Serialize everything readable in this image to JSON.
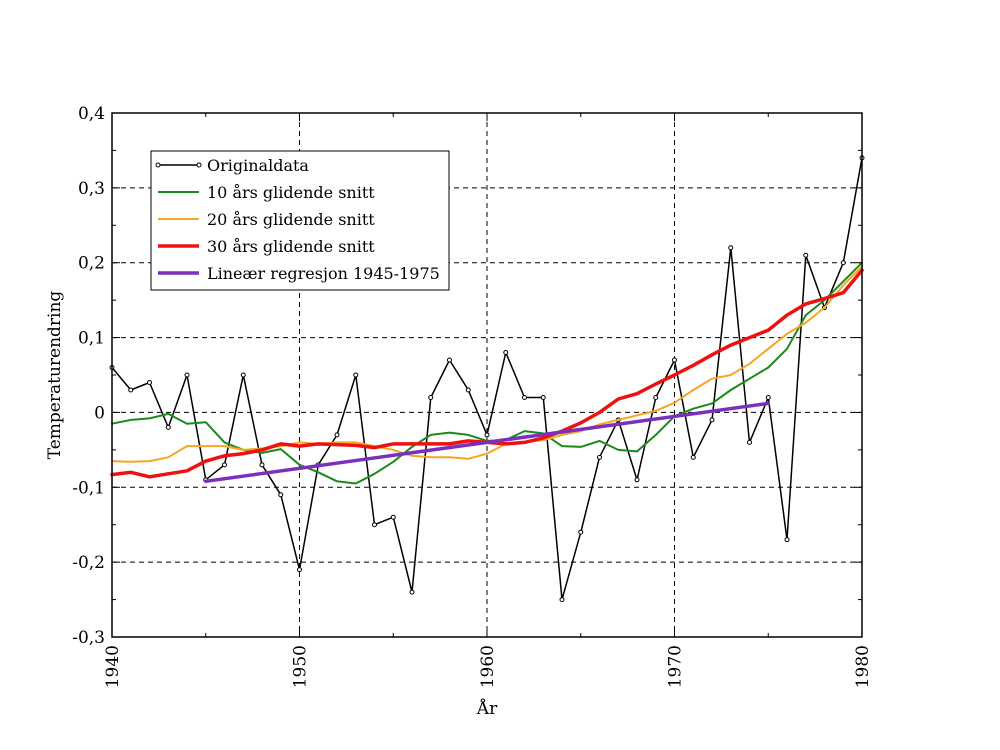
{
  "chart_data": {
    "type": "line",
    "xlabel": "År",
    "ylabel": "Temperaturendring",
    "xlim": [
      1940,
      1980
    ],
    "ylim": [
      -0.3,
      0.4
    ],
    "grid": true,
    "legend_position": "top-left",
    "x_ticks": [
      1940,
      1950,
      1960,
      1970,
      1980
    ],
    "x_tick_labels": [
      "1940",
      "1950",
      "1960",
      "1970",
      "1980"
    ],
    "y_ticks": [
      -0.3,
      -0.2,
      -0.1,
      0,
      0.1,
      0.2,
      0.3,
      0.4
    ],
    "y_tick_labels": [
      "-0,3",
      "-0,2",
      "-0,1",
      "0",
      "0,1",
      "0,2",
      "0,3",
      "0,4"
    ],
    "series": [
      {
        "name": "Originaldata",
        "color": "#000000",
        "width": 1.5,
        "markers": true,
        "x": [
          1940,
          1941,
          1942,
          1943,
          1944,
          1945,
          1946,
          1947,
          1948,
          1949,
          1950,
          1951,
          1952,
          1953,
          1954,
          1955,
          1956,
          1957,
          1958,
          1959,
          1960,
          1961,
          1962,
          1963,
          1964,
          1965,
          1966,
          1967,
          1968,
          1969,
          1970,
          1971,
          1972,
          1973,
          1974,
          1975,
          1976,
          1977,
          1978,
          1979,
          1980
        ],
        "y": [
          0.06,
          0.03,
          0.04,
          -0.02,
          0.05,
          -0.09,
          -0.07,
          0.05,
          -0.07,
          -0.11,
          -0.21,
          -0.07,
          -0.03,
          0.05,
          -0.15,
          -0.14,
          -0.24,
          0.02,
          0.07,
          0.03,
          -0.03,
          0.08,
          0.02,
          0.02,
          -0.25,
          -0.16,
          -0.06,
          -0.01,
          -0.09,
          0.02,
          0.07,
          -0.06,
          -0.01,
          0.22,
          -0.04,
          0.02,
          -0.17,
          0.21,
          0.14,
          0.2,
          0.34
        ]
      },
      {
        "name": "10 års glidende snitt",
        "color": "#1a8a1a",
        "width": 2,
        "x": [
          1940,
          1941,
          1942,
          1943,
          1944,
          1945,
          1946,
          1947,
          1948,
          1949,
          1950,
          1951,
          1952,
          1953,
          1954,
          1955,
          1956,
          1957,
          1958,
          1959,
          1960,
          1961,
          1962,
          1963,
          1964,
          1965,
          1966,
          1967,
          1968,
          1969,
          1970,
          1971,
          1972,
          1973,
          1974,
          1975,
          1976,
          1977,
          1978,
          1979,
          1980
        ],
        "y": [
          -0.015,
          -0.01,
          -0.008,
          -0.002,
          -0.015,
          -0.013,
          -0.04,
          -0.05,
          -0.054,
          -0.049,
          -0.07,
          -0.08,
          -0.092,
          -0.095,
          -0.082,
          -0.066,
          -0.046,
          -0.03,
          -0.027,
          -0.03,
          -0.038,
          -0.037,
          -0.025,
          -0.028,
          -0.045,
          -0.046,
          -0.038,
          -0.05,
          -0.052,
          -0.03,
          -0.005,
          0.005,
          0.012,
          0.03,
          0.045,
          0.06,
          0.085,
          0.13,
          0.15,
          0.175,
          0.2
        ]
      },
      {
        "name": "20 års glidende snitt",
        "color": "#f5a623",
        "width": 2,
        "x": [
          1940,
          1941,
          1942,
          1943,
          1944,
          1945,
          1946,
          1947,
          1948,
          1949,
          1950,
          1951,
          1952,
          1953,
          1954,
          1955,
          1956,
          1957,
          1958,
          1959,
          1960,
          1961,
          1962,
          1963,
          1964,
          1965,
          1966,
          1967,
          1968,
          1969,
          1970,
          1971,
          1972,
          1973,
          1974,
          1975,
          1976,
          1977,
          1978,
          1979,
          1980
        ],
        "y": [
          -0.065,
          -0.066,
          -0.065,
          -0.06,
          -0.045,
          -0.045,
          -0.045,
          -0.05,
          -0.048,
          -0.045,
          -0.04,
          -0.042,
          -0.04,
          -0.04,
          -0.045,
          -0.05,
          -0.058,
          -0.06,
          -0.06,
          -0.062,
          -0.055,
          -0.042,
          -0.04,
          -0.037,
          -0.03,
          -0.025,
          -0.016,
          -0.01,
          -0.004,
          0.002,
          0.013,
          0.03,
          0.045,
          0.05,
          0.065,
          0.085,
          0.105,
          0.12,
          0.14,
          0.17,
          0.195
        ]
      },
      {
        "name": "30 års glidende snitt",
        "color": "#ee1111",
        "width": 3.5,
        "x": [
          1940,
          1941,
          1942,
          1943,
          1944,
          1945,
          1946,
          1947,
          1948,
          1949,
          1950,
          1951,
          1952,
          1953,
          1954,
          1955,
          1956,
          1957,
          1958,
          1959,
          1960,
          1961,
          1962,
          1963,
          1964,
          1965,
          1966,
          1967,
          1968,
          1969,
          1970,
          1971,
          1972,
          1973,
          1974,
          1975,
          1976,
          1977,
          1978,
          1979,
          1980
        ],
        "y": [
          -0.083,
          -0.08,
          -0.086,
          -0.082,
          -0.078,
          -0.065,
          -0.058,
          -0.055,
          -0.05,
          -0.042,
          -0.045,
          -0.042,
          -0.043,
          -0.044,
          -0.047,
          -0.042,
          -0.042,
          -0.042,
          -0.042,
          -0.038,
          -0.04,
          -0.042,
          -0.04,
          -0.034,
          -0.025,
          -0.014,
          0.0,
          0.018,
          0.025,
          0.038,
          0.05,
          0.063,
          0.077,
          0.09,
          0.1,
          0.11,
          0.13,
          0.145,
          0.152,
          0.16,
          0.19
        ]
      },
      {
        "name": "Lineær regresjon 1945-1975",
        "color": "#7b2fbe",
        "width": 3.5,
        "x": [
          1945,
          1975
        ],
        "y": [
          -0.092,
          0.012
        ]
      }
    ]
  }
}
